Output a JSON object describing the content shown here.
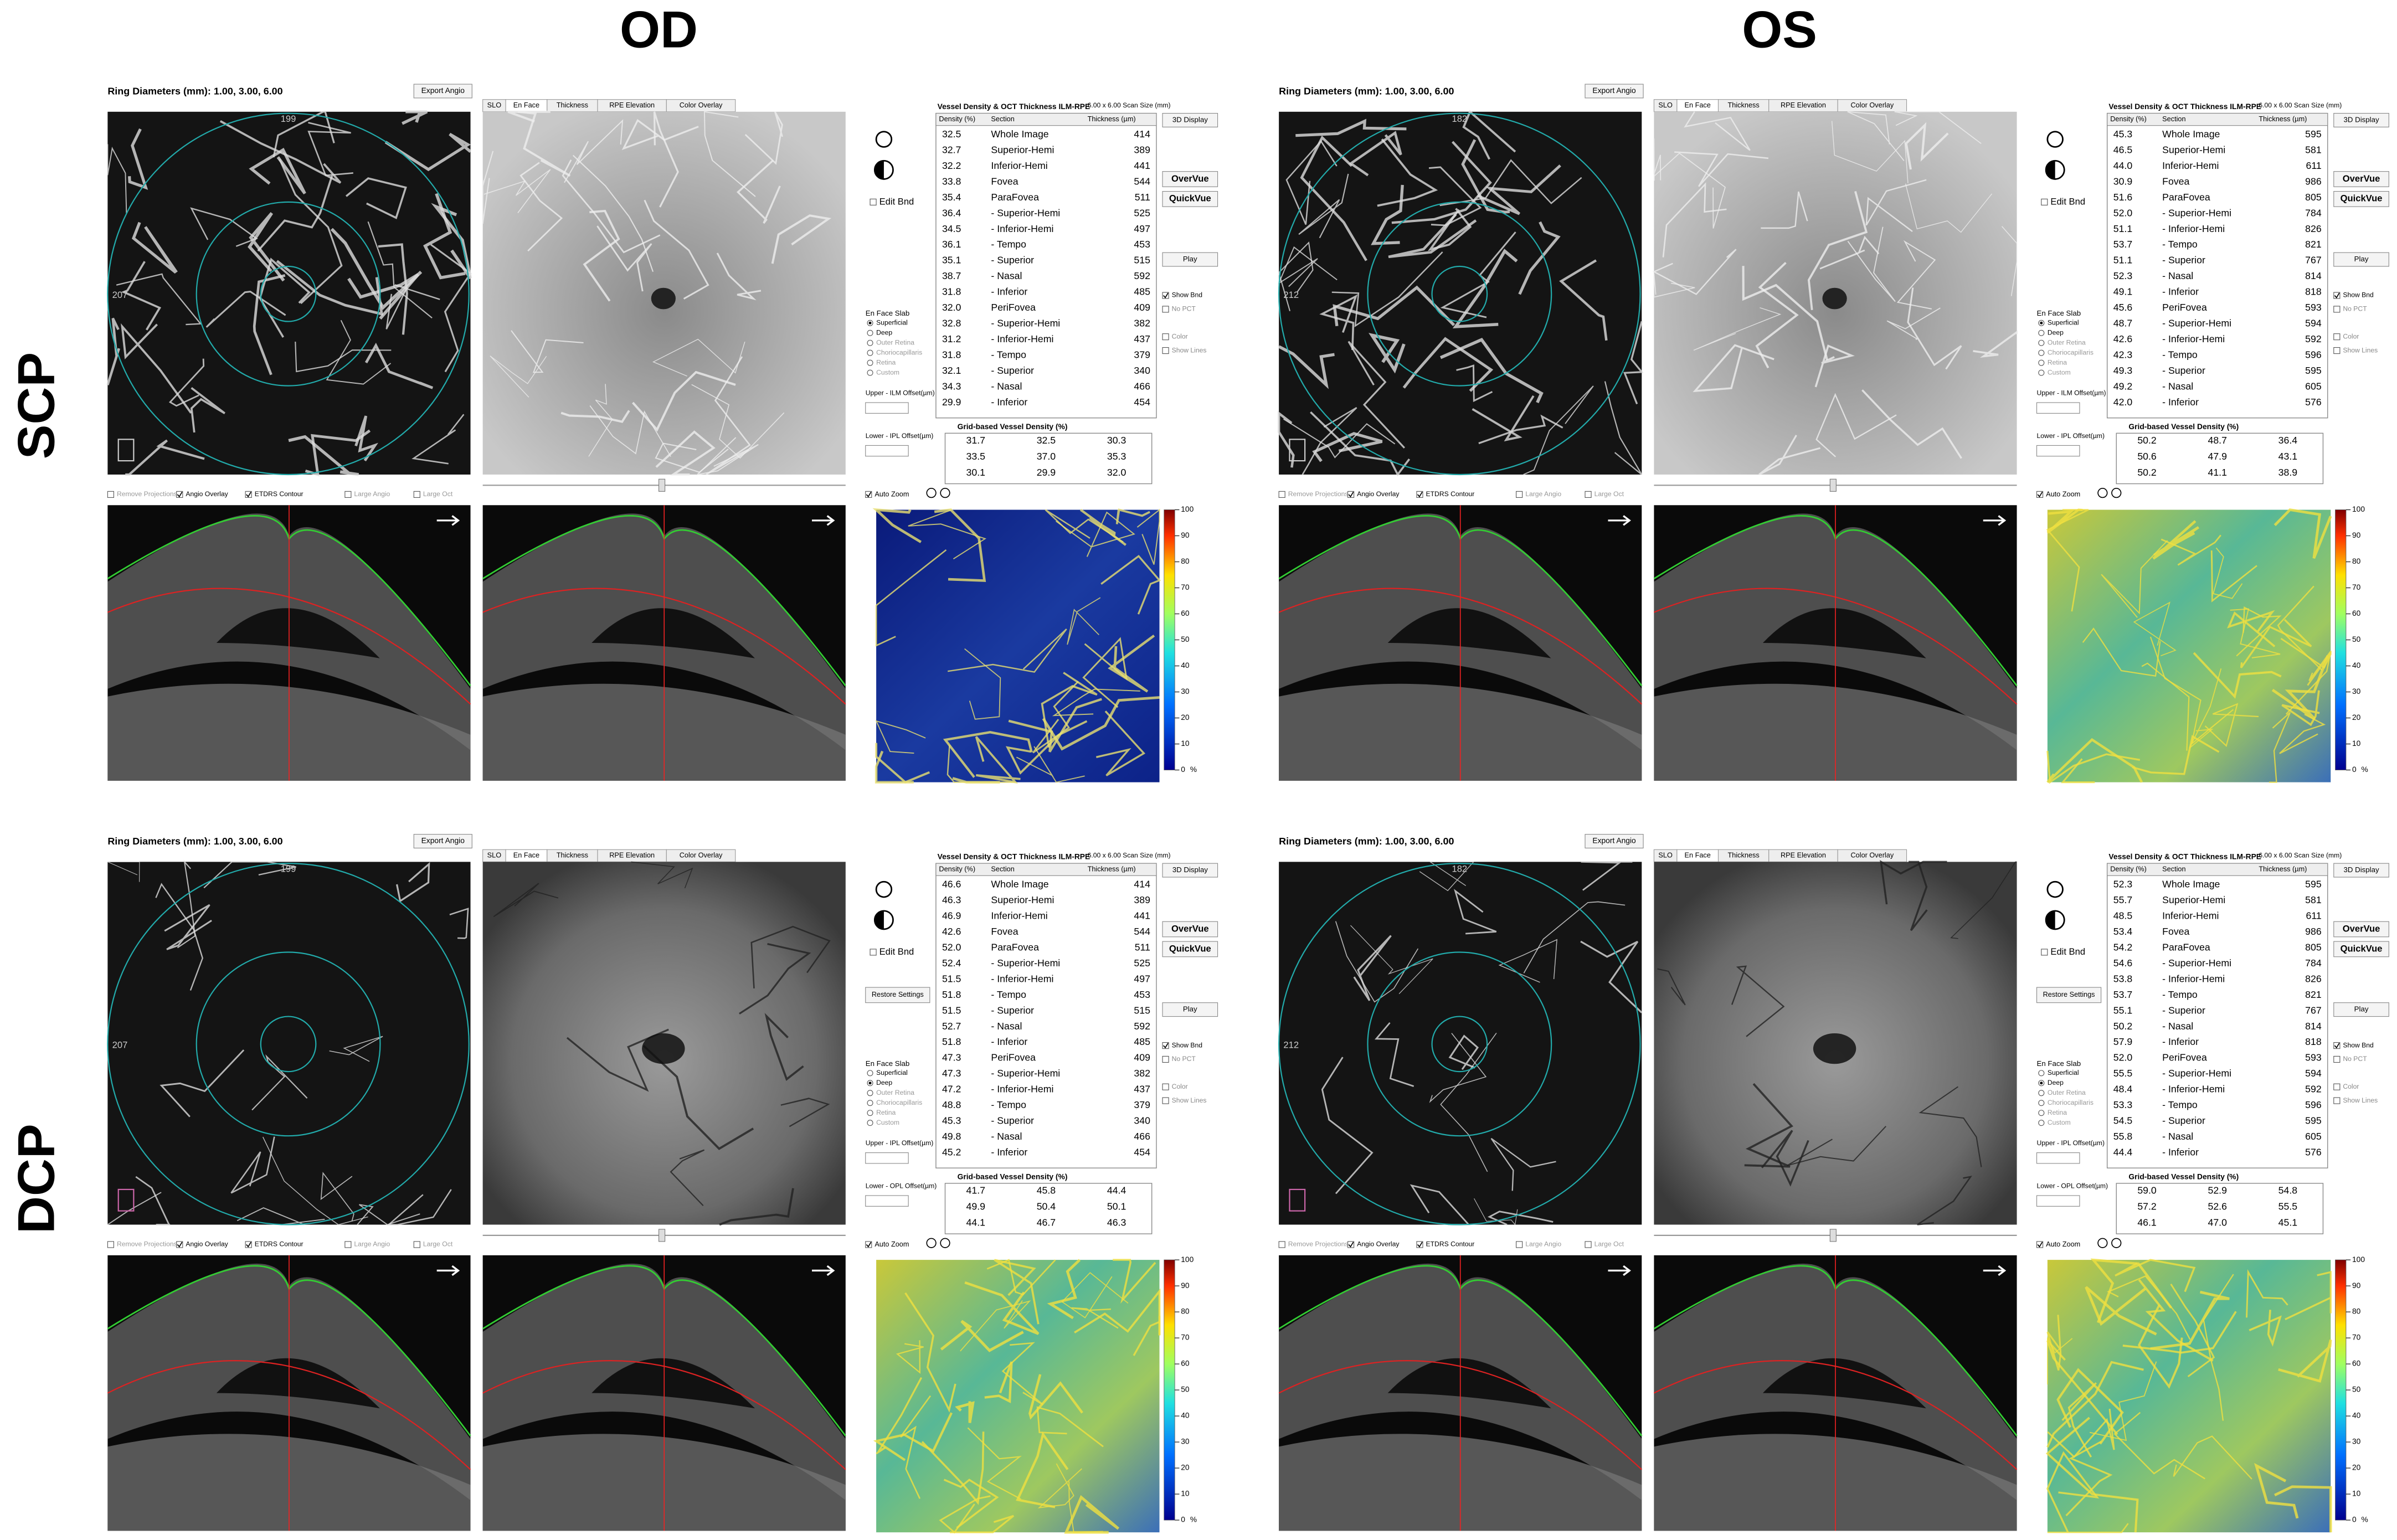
{
  "figure": {
    "columns": [
      "OD",
      "OS"
    ],
    "rows": [
      "SCP",
      "DCP"
    ]
  },
  "common": {
    "ring_diameters": "Ring Diameters (mm):  1.00,  3.00,  6.00",
    "export_angio": "Export Angio",
    "tabs": [
      "SLO",
      "En Face",
      "Thickness",
      "RPE Elevation",
      "Color Overlay"
    ],
    "table_title": "Vessel Density & OCT Thickness ILM-RPE",
    "scan_size": "6.00 x 6.00 Scan Size (mm)",
    "headers": [
      "Density (%)",
      "Section",
      "Thickness (µm)"
    ],
    "sections": [
      "Whole Image",
      "Superior-Hemi",
      "Inferior-Hemi",
      "Fovea",
      "ParaFovea",
      "- Superior-Hemi",
      "- Inferior-Hemi",
      "- Tempo",
      "- Superior",
      "- Nasal",
      "- Inferior",
      "PeriFovea",
      "- Superior-Hemi",
      "- Inferior-Hemi",
      "- Tempo",
      "- Superior",
      "- Nasal",
      "- Inferior"
    ],
    "grid_title": "Grid-based Vessel Density (%)",
    "edit_bnd": "Edit Bnd",
    "slab_title": "En Face Slab",
    "slab_options": [
      "Superficial",
      "Deep",
      "Outer Retina",
      "Choriocapillaris",
      "Retina",
      "Custom"
    ],
    "right_buttons": [
      "3D Display",
      "OverVue",
      "QuickVue",
      "Play"
    ],
    "right_checks": [
      "Show Bnd",
      "No PCT",
      "Color",
      "Show Lines"
    ],
    "bottom_checks": [
      "Remove Projections",
      "Angio Overlay",
      "ETDRS Contour",
      "Large Angio",
      "Large Oct"
    ],
    "auto_zoom": "Auto Zoom",
    "scale_ticks": [
      100,
      90,
      80,
      70,
      60,
      50,
      40,
      30,
      20,
      10,
      0
    ],
    "scale_unit": "%"
  },
  "panels": [
    {
      "ring_labels": [
        "199",
        "207"
      ],
      "selected_slab": 0,
      "upper_offset": "Upper - ILM Offset(µm)",
      "lower_offset": "Lower - IPL Offset(µm)",
      "density": [
        "32.5",
        "32.7",
        "32.2",
        "33.8",
        "35.4",
        "36.4",
        "34.5",
        "36.1",
        "35.1",
        "38.7",
        "31.8",
        "32.0",
        "32.8",
        "31.2",
        "31.8",
        "32.1",
        "34.3",
        "29.9"
      ],
      "thickness": [
        414,
        389,
        441,
        544,
        511,
        525,
        497,
        453,
        515,
        592,
        485,
        409,
        382,
        437,
        379,
        340,
        466,
        454
      ],
      "grid": [
        [
          "31.7",
          "32.5",
          "30.3"
        ],
        [
          "33.5",
          "37.0",
          "35.3"
        ],
        [
          "30.1",
          "29.9",
          "32.0"
        ]
      ]
    },
    {
      "ring_labels": [
        "182",
        "212"
      ],
      "selected_slab": 0,
      "upper_offset": "Upper - ILM Offset(µm)",
      "lower_offset": "Lower - IPL Offset(µm)",
      "density": [
        "45.3",
        "46.5",
        "44.0",
        "30.9",
        "51.6",
        "52.0",
        "51.1",
        "53.7",
        "51.1",
        "52.3",
        "49.1",
        "45.6",
        "48.7",
        "42.6",
        "42.3",
        "49.3",
        "49.2",
        "42.0"
      ],
      "thickness": [
        595,
        581,
        611,
        986,
        805,
        784,
        826,
        821,
        767,
        814,
        818,
        593,
        594,
        592,
        596,
        595,
        605,
        576
      ],
      "grid": [
        [
          "50.2",
          "48.7",
          "36.4"
        ],
        [
          "50.6",
          "47.9",
          "43.1"
        ],
        [
          "50.2",
          "41.1",
          "38.9"
        ]
      ]
    },
    {
      "ring_labels": [
        "199",
        "207"
      ],
      "selected_slab": 1,
      "upper_offset": "Upper - IPL Offset(µm)",
      "lower_offset": "Lower - OPL Offset(µm)",
      "extra_button": "Restore Settings",
      "density": [
        "46.6",
        "46.3",
        "46.9",
        "42.6",
        "52.0",
        "52.4",
        "51.5",
        "51.8",
        "51.5",
        "52.7",
        "51.8",
        "47.3",
        "47.3",
        "47.2",
        "48.8",
        "45.3",
        "49.8",
        "45.2"
      ],
      "thickness": [
        414,
        389,
        441,
        544,
        511,
        525,
        497,
        453,
        515,
        592,
        485,
        409,
        382,
        437,
        379,
        340,
        466,
        454
      ],
      "grid": [
        [
          "41.7",
          "45.8",
          "44.4"
        ],
        [
          "49.9",
          "50.4",
          "50.1"
        ],
        [
          "44.1",
          "46.7",
          "46.3"
        ]
      ]
    },
    {
      "ring_labels": [
        "182",
        "212"
      ],
      "selected_slab": 1,
      "upper_offset": "Upper - IPL Offset(µm)",
      "lower_offset": "Lower - OPL Offset(µm)",
      "extra_button": "Restore Settings",
      "density": [
        "52.3",
        "55.7",
        "48.5",
        "53.4",
        "54.2",
        "54.6",
        "53.8",
        "53.7",
        "55.1",
        "50.2",
        "57.9",
        "52.0",
        "55.5",
        "48.4",
        "53.3",
        "54.5",
        "55.8",
        "44.4"
      ],
      "thickness": [
        595,
        581,
        611,
        986,
        805,
        784,
        826,
        821,
        767,
        814,
        818,
        593,
        594,
        592,
        596,
        595,
        605,
        576
      ],
      "grid": [
        [
          "59.0",
          "52.9",
          "54.8"
        ],
        [
          "57.2",
          "52.6",
          "55.5"
        ],
        [
          "46.1",
          "47.0",
          "45.1"
        ]
      ]
    }
  ]
}
